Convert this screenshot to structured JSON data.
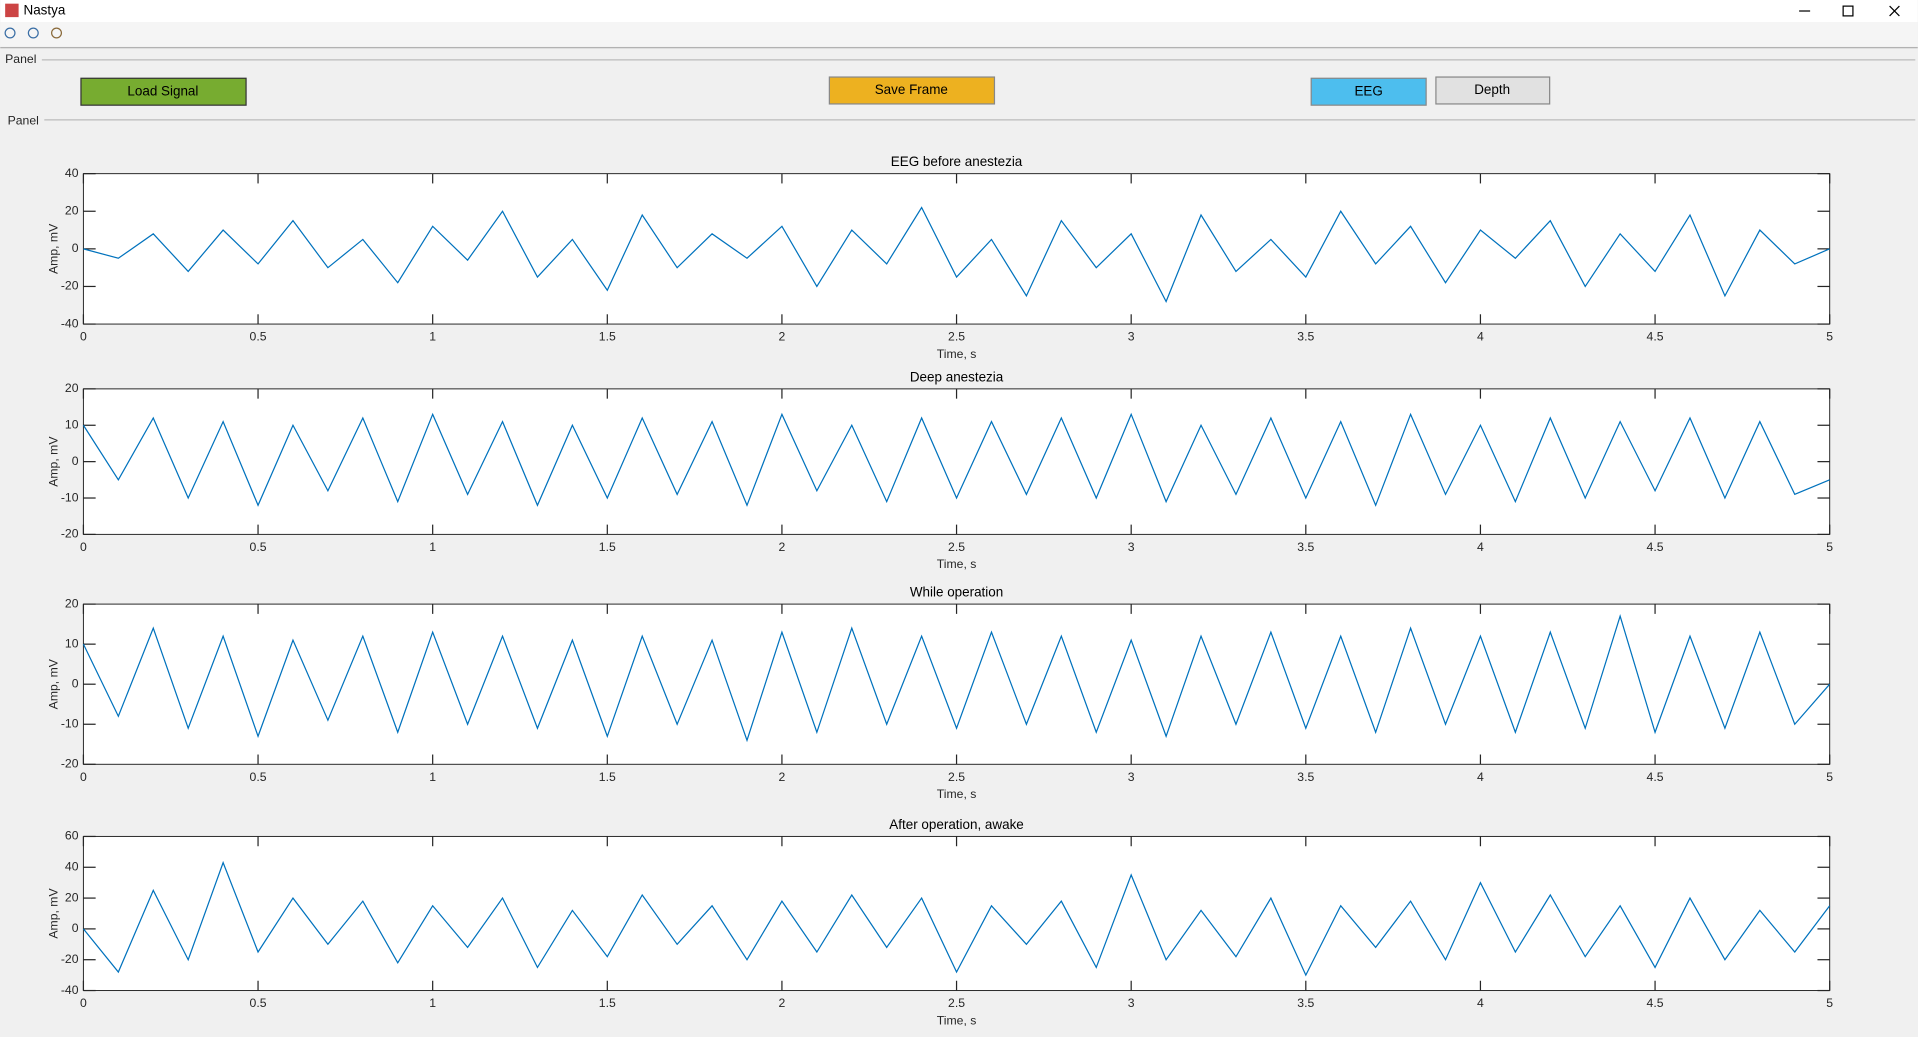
{
  "window": {
    "title": "Nastya"
  },
  "panels": [
    "Panel",
    "Panel"
  ],
  "buttons": [
    "Load Signal",
    "Save Frame",
    "EEG",
    "Depth"
  ],
  "chart_data": [
    {
      "type": "line",
      "title": "EEG before anestezia",
      "x_label": "Time, s",
      "y_label": "Amp, mV",
      "color": "#0072bd",
      "xlim": [
        0,
        5
      ],
      "xticks": [
        0,
        0.5,
        1,
        1.5,
        2,
        2.5,
        3,
        3.5,
        4,
        4.5,
        5
      ],
      "ylim": [
        -40,
        40
      ],
      "yticks": [
        -40,
        -20,
        0,
        20,
        40
      ],
      "x": [
        0,
        0.1,
        0.2,
        0.3,
        0.4,
        0.5,
        0.6,
        0.7,
        0.8,
        0.9,
        1,
        1.1,
        1.2,
        1.3,
        1.4,
        1.5,
        1.6,
        1.7,
        1.8,
        1.9,
        2,
        2.1,
        2.2,
        2.3,
        2.4,
        2.5,
        2.6,
        2.7,
        2.8,
        2.9,
        3,
        3.1,
        3.2,
        3.3,
        3.4,
        3.5,
        3.6,
        3.7,
        3.8,
        3.9,
        4,
        4.1,
        4.2,
        4.3,
        4.4,
        4.5,
        4.6,
        4.7,
        4.8,
        4.9,
        5
      ],
      "values": [
        0,
        -5,
        8,
        -12,
        10,
        -8,
        15,
        -10,
        5,
        -18,
        12,
        -6,
        20,
        -15,
        5,
        -22,
        18,
        -10,
        8,
        -5,
        12,
        -20,
        10,
        -8,
        22,
        -15,
        5,
        -25,
        15,
        -10,
        8,
        -28,
        18,
        -12,
        5,
        -15,
        20,
        -8,
        12,
        -18,
        10,
        -5,
        15,
        -20,
        8,
        -12,
        18,
        -25,
        10,
        -8,
        0
      ]
    },
    {
      "type": "line",
      "title": "Deep anestezia",
      "x_label": "Time, s",
      "y_label": "Amp, mV",
      "color": "#0072bd",
      "xlim": [
        0,
        5
      ],
      "xticks": [
        0,
        0.5,
        1,
        1.5,
        2,
        2.5,
        3,
        3.5,
        4,
        4.5,
        5
      ],
      "ylim": [
        -20,
        20
      ],
      "yticks": [
        -20,
        -10,
        0,
        10,
        20
      ],
      "x": [
        0,
        0.1,
        0.2,
        0.3,
        0.4,
        0.5,
        0.6,
        0.7,
        0.8,
        0.9,
        1,
        1.1,
        1.2,
        1.3,
        1.4,
        1.5,
        1.6,
        1.7,
        1.8,
        1.9,
        2,
        2.1,
        2.2,
        2.3,
        2.4,
        2.5,
        2.6,
        2.7,
        2.8,
        2.9,
        3,
        3.1,
        3.2,
        3.3,
        3.4,
        3.5,
        3.6,
        3.7,
        3.8,
        3.9,
        4,
        4.1,
        4.2,
        4.3,
        4.4,
        4.5,
        4.6,
        4.7,
        4.8,
        4.9,
        5
      ],
      "values": [
        10,
        -5,
        12,
        -10,
        11,
        -12,
        10,
        -8,
        12,
        -11,
        13,
        -9,
        11,
        -12,
        10,
        -10,
        12,
        -9,
        11,
        -12,
        13,
        -8,
        10,
        -11,
        12,
        -10,
        11,
        -9,
        12,
        -10,
        13,
        -11,
        10,
        -9,
        12,
        -10,
        11,
        -12,
        13,
        -9,
        10,
        -11,
        12,
        -10,
        11,
        -8,
        12,
        -10,
        11,
        -9,
        -5
      ]
    },
    {
      "type": "line",
      "title": "While operation",
      "x_label": "Time, s",
      "y_label": "Amp, mV",
      "color": "#0072bd",
      "xlim": [
        0,
        5
      ],
      "xticks": [
        0,
        0.5,
        1,
        1.5,
        2,
        2.5,
        3,
        3.5,
        4,
        4.5,
        5
      ],
      "ylim": [
        -20,
        20
      ],
      "yticks": [
        -20,
        -10,
        0,
        10,
        20
      ],
      "x": [
        0,
        0.1,
        0.2,
        0.3,
        0.4,
        0.5,
        0.6,
        0.7,
        0.8,
        0.9,
        1,
        1.1,
        1.2,
        1.3,
        1.4,
        1.5,
        1.6,
        1.7,
        1.8,
        1.9,
        2,
        2.1,
        2.2,
        2.3,
        2.4,
        2.5,
        2.6,
        2.7,
        2.8,
        2.9,
        3,
        3.1,
        3.2,
        3.3,
        3.4,
        3.5,
        3.6,
        3.7,
        3.8,
        3.9,
        4,
        4.1,
        4.2,
        4.3,
        4.4,
        4.5,
        4.6,
        4.7,
        4.8,
        4.9,
        5
      ],
      "values": [
        10,
        -8,
        14,
        -11,
        12,
        -13,
        11,
        -9,
        12,
        -12,
        13,
        -10,
        12,
        -11,
        11,
        -13,
        12,
        -10,
        11,
        -14,
        13,
        -12,
        14,
        -10,
        12,
        -11,
        13,
        -10,
        12,
        -12,
        11,
        -13,
        12,
        -10,
        13,
        -11,
        12,
        -12,
        14,
        -10,
        12,
        -12,
        13,
        -11,
        17,
        -12,
        12,
        -11,
        13,
        -10,
        0
      ]
    },
    {
      "type": "line",
      "title": "After operation, awake",
      "x_label": "Time, s",
      "y_label": "Amp, mV",
      "color": "#0072bd",
      "xlim": [
        0,
        5
      ],
      "xticks": [
        0,
        0.5,
        1,
        1.5,
        2,
        2.5,
        3,
        3.5,
        4,
        4.5,
        5
      ],
      "ylim": [
        -40,
        60
      ],
      "yticks": [
        -40,
        -20,
        0,
        20,
        40,
        60
      ],
      "x": [
        0,
        0.1,
        0.2,
        0.3,
        0.4,
        0.5,
        0.6,
        0.7,
        0.8,
        0.9,
        1,
        1.1,
        1.2,
        1.3,
        1.4,
        1.5,
        1.6,
        1.7,
        1.8,
        1.9,
        2,
        2.1,
        2.2,
        2.3,
        2.4,
        2.5,
        2.6,
        2.7,
        2.8,
        2.9,
        3,
        3.1,
        3.2,
        3.3,
        3.4,
        3.5,
        3.6,
        3.7,
        3.8,
        3.9,
        4,
        4.1,
        4.2,
        4.3,
        4.4,
        4.5,
        4.6,
        4.7,
        4.8,
        4.9,
        5
      ],
      "values": [
        0,
        -28,
        25,
        -20,
        43,
        -15,
        20,
        -10,
        18,
        -22,
        15,
        -12,
        20,
        -25,
        12,
        -18,
        22,
        -10,
        15,
        -20,
        18,
        -15,
        22,
        -12,
        20,
        -28,
        15,
        -10,
        18,
        -25,
        35,
        -20,
        12,
        -18,
        20,
        -30,
        15,
        -12,
        18,
        -20,
        30,
        -15,
        22,
        -18,
        15,
        -25,
        20,
        -20,
        12,
        -15,
        15
      ]
    }
  ]
}
